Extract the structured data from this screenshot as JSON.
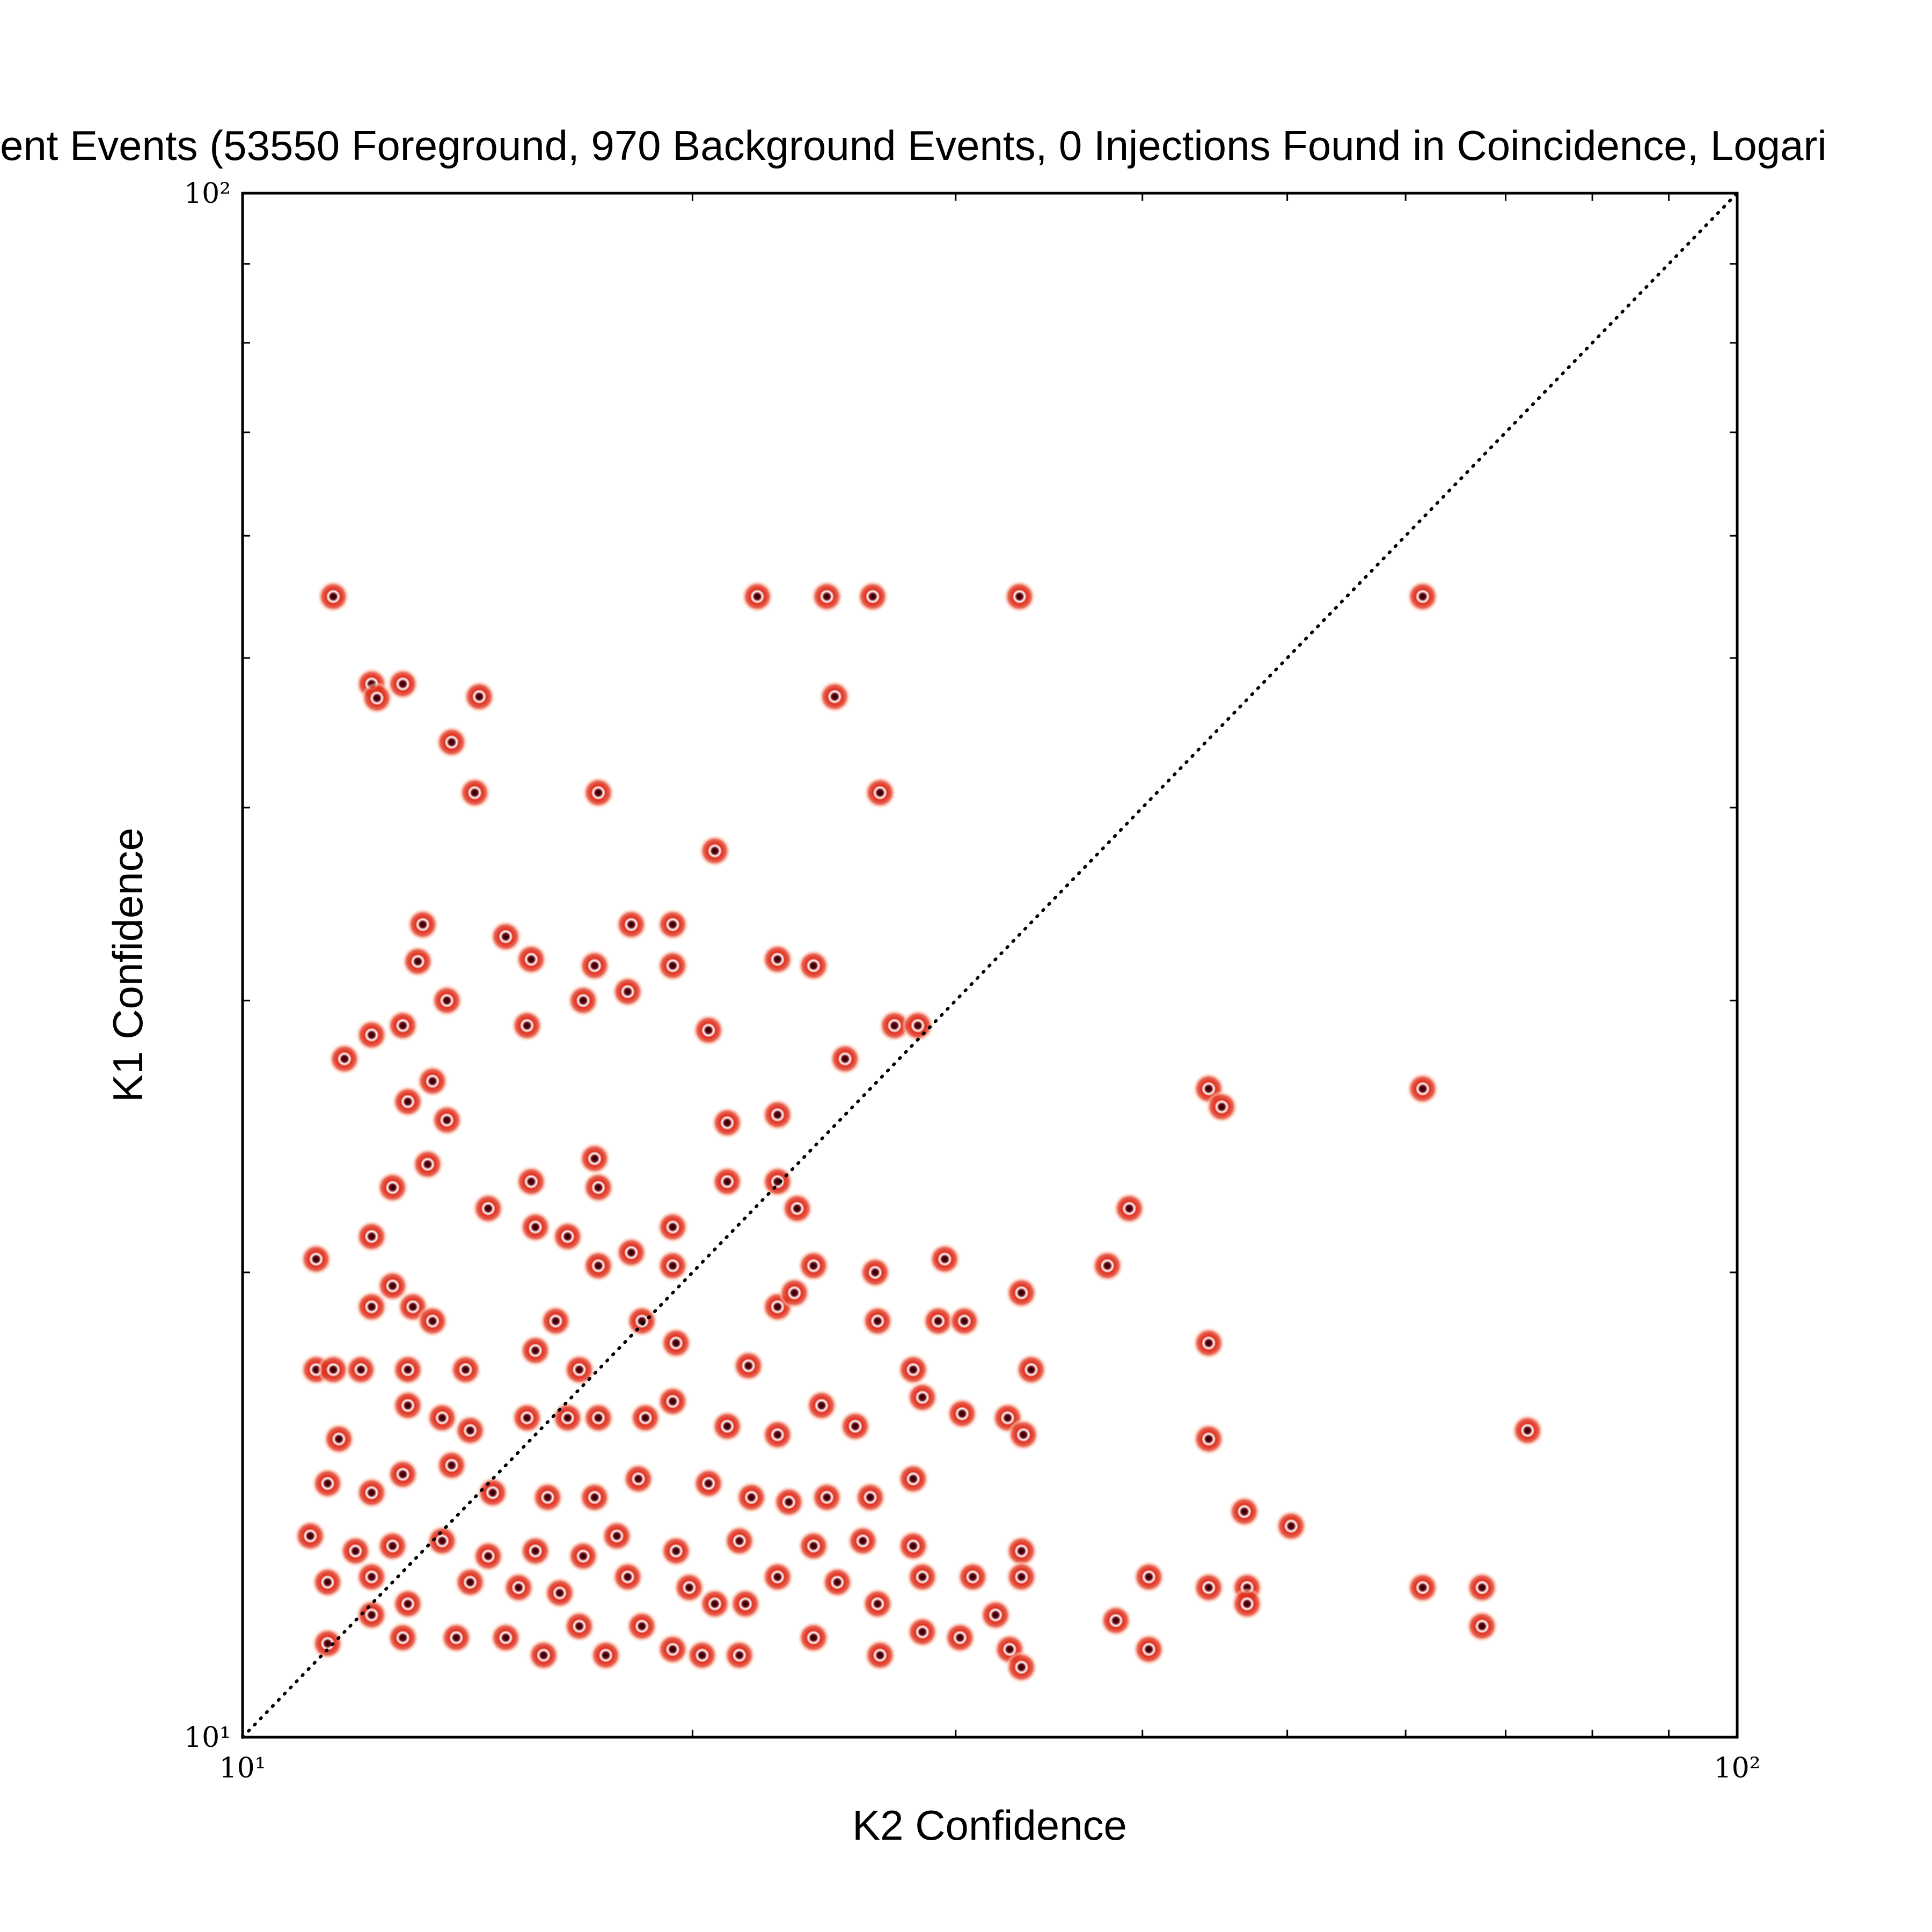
{
  "chart_data": {
    "type": "scatter",
    "title": "ent Events (53550 Foreground, 970 Background Events, 0 Injections Found in Coincidence, Logari",
    "xlabel": "K2 Confidence",
    "ylabel": "K1 Confidence",
    "xscale": "log",
    "yscale": "log",
    "xlim": [
      10,
      100
    ],
    "ylim": [
      10,
      100
    ],
    "xticks": [
      {
        "value": 10,
        "label": "10¹"
      },
      {
        "value": 100,
        "label": "10²"
      }
    ],
    "yticks": [
      {
        "value": 10,
        "label": "10¹"
      },
      {
        "value": 100,
        "label": "10²"
      }
    ],
    "xminorticks": [
      20,
      30,
      40,
      50,
      60,
      70,
      80,
      90
    ],
    "yminorticks": [
      20,
      30,
      40,
      50,
      60,
      70,
      80,
      90
    ],
    "diagonal": true,
    "color": "#e0301e",
    "x": [
      11.5,
      22.1,
      24.6,
      26.4,
      33.1,
      61.6,
      12.2,
      12.8,
      14.4,
      12.3,
      13.8,
      14.3,
      17.3,
      26.7,
      24.9,
      20.7,
      13.2,
      15.0,
      15.6,
      18.2,
      19.4,
      17.2,
      18.1,
      22.8,
      24.1,
      19.4,
      13.1,
      13.7,
      16.9,
      15.5,
      20.5,
      27.3,
      28.3,
      12.8,
      12.2,
      11.7,
      25.3,
      13.4,
      12.9,
      13.7,
      21.1,
      22.8,
      17.2,
      13.3,
      12.6,
      15.6,
      17.3,
      21.1,
      22.8,
      14.6,
      23.5,
      39.2,
      44.3,
      45.2,
      61.6,
      12.2,
      15.7,
      16.5,
      19.4,
      11.2,
      17.3,
      18.2,
      19.4,
      24.1,
      26.5,
      29.5,
      33.2,
      37.9,
      12.6,
      12.2,
      13.0,
      13.4,
      16.2,
      18.5,
      22.8,
      23.4,
      26.6,
      29.2,
      30.4,
      44.3,
      15.7,
      19.5,
      11.2,
      11.5,
      12.0,
      12.9,
      14.1,
      16.8,
      21.8,
      19.4,
      33.7,
      28.1,
      11.6,
      12.9,
      13.6,
      14.2,
      15.5,
      16.5,
      17.3,
      18.6,
      21.1,
      22.8,
      24.4,
      25.7,
      28.5,
      30.3,
      32.5,
      33.3,
      44.3,
      72.4,
      11.4,
      12.2,
      12.8,
      13.8,
      14.7,
      16.0,
      17.2,
      18.4,
      20.5,
      21.9,
      23.2,
      24.6,
      26.3,
      28.1,
      46.8,
      50.3,
      11.1,
      11.9,
      12.6,
      13.6,
      14.6,
      15.7,
      16.9,
      17.8,
      19.5,
      21.5,
      22.8,
      24.1,
      26.0,
      28.1,
      33.2,
      33.2,
      40.4,
      44.3,
      47.0,
      61.6,
      67.5,
      11.4,
      12.2,
      12.9,
      14.2,
      15.3,
      16.3,
      18.1,
      19.9,
      20.7,
      21.7,
      25.0,
      26.6,
      28.5,
      30.8,
      47.0,
      11.4,
      12.2,
      12.8,
      13.9,
      15.0,
      15.9,
      16.8,
      17.5,
      18.5,
      19.4,
      20.3,
      21.5,
      24.1,
      26.7,
      28.5,
      30.2,
      31.9,
      32.6,
      33.2,
      38.4,
      40.4,
      67.5
    ],
    "values": [
      54.8,
      54.8,
      54.8,
      54.8,
      54.8,
      54.8,
      48.1,
      48.1,
      47.2,
      47.1,
      44.1,
      40.9,
      40.9,
      40.9,
      47.2,
      37.5,
      33.6,
      33.0,
      31.9,
      33.6,
      33.6,
      31.6,
      30.4,
      31.9,
      31.6,
      31.6,
      31.8,
      30.0,
      30.0,
      28.9,
      28.7,
      28.9,
      28.9,
      28.9,
      28.5,
      27.5,
      27.5,
      26.6,
      25.8,
      25.1,
      25.0,
      25.3,
      23.7,
      23.5,
      22.7,
      22.9,
      22.7,
      22.9,
      22.9,
      22.0,
      22.0,
      22.0,
      26.3,
      25.6,
      26.3,
      21.1,
      21.4,
      21.1,
      21.4,
      20.4,
      20.2,
      20.6,
      20.2,
      20.2,
      20.0,
      20.4,
      19.4,
      20.2,
      19.6,
      19.0,
      19.0,
      18.6,
      18.6,
      18.6,
      19.0,
      19.4,
      18.6,
      18.6,
      18.6,
      18.0,
      17.8,
      18.0,
      17.3,
      17.3,
      17.3,
      17.3,
      17.3,
      17.3,
      17.4,
      16.5,
      17.3,
      17.3,
      15.6,
      16.4,
      16.1,
      15.8,
      16.1,
      16.1,
      16.1,
      16.1,
      15.9,
      15.7,
      16.4,
      15.9,
      16.6,
      16.2,
      16.1,
      15.7,
      15.6,
      15.8,
      14.6,
      14.4,
      14.8,
      15.0,
      14.4,
      14.3,
      14.3,
      14.7,
      14.6,
      14.3,
      14.2,
      14.3,
      14.3,
      14.7,
      14.0,
      13.7,
      13.5,
      13.2,
      13.3,
      13.4,
      13.1,
      13.2,
      13.1,
      13.5,
      13.2,
      13.4,
      12.7,
      13.3,
      13.4,
      13.3,
      13.2,
      12.7,
      12.7,
      12.5,
      12.5,
      12.5,
      12.5,
      12.6,
      12.7,
      12.2,
      12.6,
      12.5,
      12.4,
      12.7,
      12.5,
      12.2,
      12.2,
      12.6,
      12.2,
      12.7,
      12.7,
      12.2,
      11.5,
      12.0,
      11.6,
      11.6,
      11.6,
      11.3,
      11.8,
      11.3,
      11.8,
      11.4,
      11.3,
      11.3,
      11.6,
      11.3,
      11.7,
      11.6,
      12.0,
      11.4,
      11.1,
      11.9,
      11.4,
      11.8
    ]
  }
}
